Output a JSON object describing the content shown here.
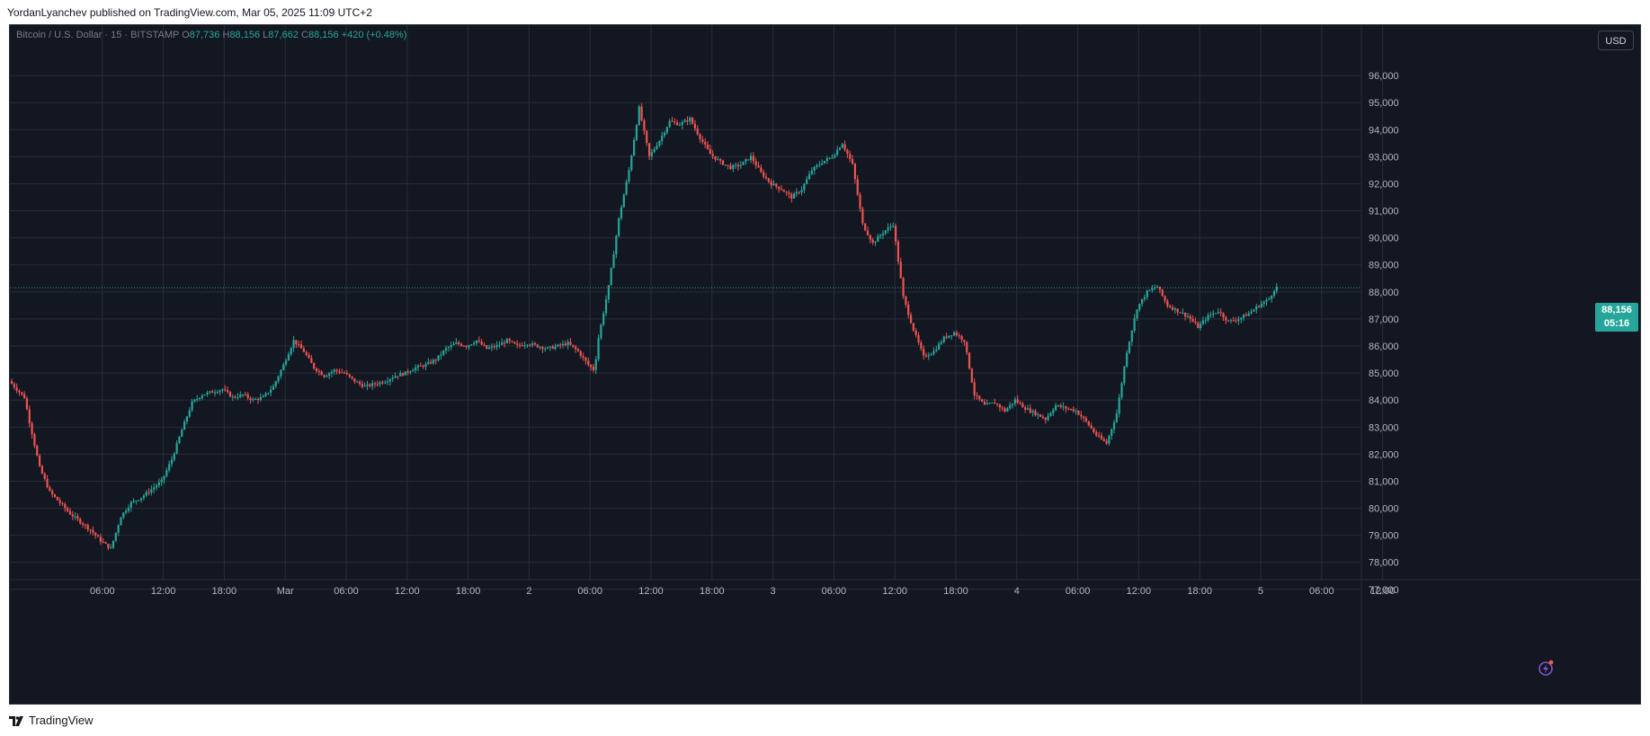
{
  "header": {
    "published_line": "YordanLyanchev published on TradingView.com, Mar 05, 2025 11:09 UTC+2"
  },
  "legend": {
    "symbol": "Bitcoin / U.S. Dollar · 15 · BITSTAMP",
    "o_label": "O",
    "o_value": "87,736",
    "h_label": "H",
    "h_value": "88,156",
    "l_label": "L",
    "l_value": "87,662",
    "c_label": "C",
    "c_value": "88,156",
    "change": "+420 (+0.48%)"
  },
  "currency_button": "USD",
  "price_tag": {
    "price": "88,156",
    "countdown": "05:16"
  },
  "footer": {
    "brand": "TradingView"
  },
  "colors": {
    "background": "#131722",
    "grid": "#2a2e39",
    "up": "#26a69a",
    "down": "#ef5350",
    "axis_text": "#b2b5be",
    "accent": "#26a69a"
  },
  "chart_data": {
    "type": "candlestick",
    "interval": "15",
    "ylim": [
      76500,
      96800
    ],
    "yticks": [
      "96,000",
      "95,000",
      "94,000",
      "93,000",
      "92,000",
      "91,000",
      "90,000",
      "89,000",
      "88,000",
      "87,000",
      "86,000",
      "85,000",
      "84,000",
      "83,000",
      "82,000",
      "81,000",
      "80,000",
      "79,000",
      "78,000",
      "77,000"
    ],
    "ytick_values": [
      96000,
      95000,
      94000,
      93000,
      92000,
      91000,
      90000,
      89000,
      88000,
      87000,
      86000,
      85000,
      84000,
      83000,
      82000,
      81000,
      80000,
      79000,
      78000,
      77000
    ],
    "xticks": [
      "06:00",
      "12:00",
      "18:00",
      "Mar",
      "06:00",
      "12:00",
      "18:00",
      "2",
      "06:00",
      "12:00",
      "18:00",
      "3",
      "06:00",
      "12:00",
      "18:00",
      "4",
      "06:00",
      "12:00",
      "18:00",
      "5",
      "06:00",
      "12:00"
    ],
    "xtick_hours": [
      6,
      12,
      18,
      24,
      30,
      36,
      42,
      48,
      54,
      60,
      66,
      72,
      78,
      84,
      90,
      96,
      102,
      108,
      114,
      120,
      126,
      132
    ],
    "last_price": 88156,
    "price_path": [
      [
        0,
        84700
      ],
      [
        1.5,
        84100
      ],
      [
        2,
        83200
      ],
      [
        3,
        81500
      ],
      [
        4,
        80600
      ],
      [
        5,
        80200
      ],
      [
        6,
        79800
      ],
      [
        7,
        79500
      ],
      [
        8,
        79200
      ],
      [
        9,
        78800
      ],
      [
        10,
        78500
      ],
      [
        11,
        79700
      ],
      [
        12,
        80200
      ],
      [
        13,
        80400
      ],
      [
        14,
        80700
      ],
      [
        15,
        81000
      ],
      [
        16,
        81800
      ],
      [
        17,
        82900
      ],
      [
        18,
        83900
      ],
      [
        19,
        84200
      ],
      [
        20,
        84300
      ],
      [
        21,
        84400
      ],
      [
        22,
        84100
      ],
      [
        23,
        84200
      ],
      [
        24,
        84000
      ],
      [
        25,
        84100
      ],
      [
        26,
        84500
      ],
      [
        27,
        85300
      ],
      [
        28,
        86200
      ],
      [
        29,
        85800
      ],
      [
        30,
        85200
      ],
      [
        31,
        84900
      ],
      [
        32,
        85100
      ],
      [
        33,
        85000
      ],
      [
        34,
        84700
      ],
      [
        35,
        84500
      ],
      [
        36,
        84600
      ],
      [
        37,
        84700
      ],
      [
        38,
        84900
      ],
      [
        39,
        85000
      ],
      [
        40,
        85200
      ],
      [
        41,
        85300
      ],
      [
        42,
        85500
      ],
      [
        43,
        85900
      ],
      [
        44,
        86100
      ],
      [
        45,
        86000
      ],
      [
        46,
        86200
      ],
      [
        47,
        85900
      ],
      [
        48,
        86000
      ],
      [
        49,
        86200
      ],
      [
        50,
        86000
      ],
      [
        51,
        86100
      ],
      [
        52,
        86000
      ],
      [
        53,
        85900
      ],
      [
        54,
        86000
      ],
      [
        55,
        86100
      ],
      [
        56,
        85800
      ],
      [
        57,
        85300
      ],
      [
        57.6,
        85100
      ],
      [
        58,
        86300
      ],
      [
        59,
        88200
      ],
      [
        60,
        90700
      ],
      [
        61,
        92500
      ],
      [
        62,
        94800
      ],
      [
        63,
        93000
      ],
      [
        64,
        93600
      ],
      [
        65,
        94300
      ],
      [
        66,
        94200
      ],
      [
        67,
        94400
      ],
      [
        68,
        93700
      ],
      [
        69,
        93100
      ],
      [
        70,
        92800
      ],
      [
        71,
        92600
      ],
      [
        72,
        92700
      ],
      [
        73,
        93000
      ],
      [
        74,
        92400
      ],
      [
        75,
        92000
      ],
      [
        76,
        91800
      ],
      [
        77,
        91500
      ],
      [
        78,
        91800
      ],
      [
        79,
        92500
      ],
      [
        80,
        92800
      ],
      [
        81,
        93000
      ],
      [
        82,
        93500
      ],
      [
        83,
        92700
      ],
      [
        84,
        90500
      ],
      [
        85,
        89800
      ],
      [
        86,
        90200
      ],
      [
        87,
        90500
      ],
      [
        88,
        87800
      ],
      [
        89,
        86600
      ],
      [
        90,
        85600
      ],
      [
        91,
        85800
      ],
      [
        92,
        86300
      ],
      [
        93,
        86500
      ],
      [
        94,
        86200
      ],
      [
        95,
        84200
      ],
      [
        96,
        83800
      ],
      [
        97,
        83900
      ],
      [
        98,
        83600
      ],
      [
        99,
        84000
      ],
      [
        100,
        83700
      ],
      [
        101,
        83500
      ],
      [
        102,
        83300
      ],
      [
        103,
        83800
      ],
      [
        104,
        83700
      ],
      [
        105,
        83600
      ],
      [
        106,
        83200
      ],
      [
        107,
        82700
      ],
      [
        108,
        82400
      ],
      [
        109,
        83500
      ],
      [
        110,
        85800
      ],
      [
        111,
        87400
      ],
      [
        112,
        88000
      ],
      [
        113,
        88200
      ],
      [
        114,
        87500
      ],
      [
        115,
        87300
      ],
      [
        116,
        87100
      ],
      [
        117,
        86700
      ],
      [
        118,
        87100
      ],
      [
        119,
        87300
      ],
      [
        120,
        86900
      ],
      [
        121,
        87000
      ],
      [
        122,
        87200
      ],
      [
        123,
        87500
      ],
      [
        124,
        87736
      ],
      [
        124.6,
        88156
      ]
    ],
    "hours_visible": 137
  }
}
